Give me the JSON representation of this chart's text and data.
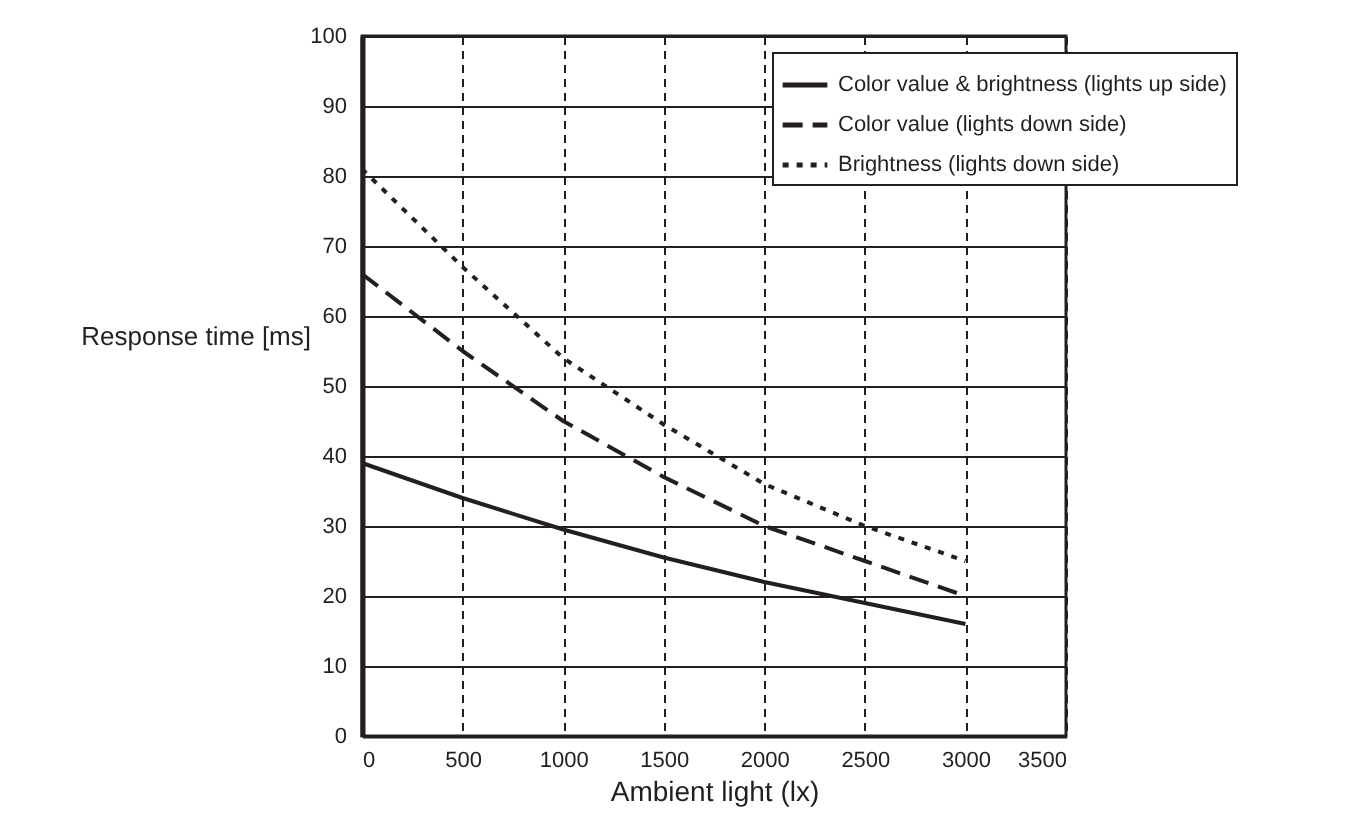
{
  "chart_data": {
    "type": "line",
    "xlabel": "Ambient light (lx)",
    "ylabel": "Response time [ms]",
    "x": [
      0,
      500,
      1000,
      1500,
      2000,
      2500,
      3000
    ],
    "series": [
      {
        "name": "Color value & brightness (lights up side)",
        "color": "#231f20",
        "line_style": "solid",
        "values": [
          39,
          34,
          29.5,
          25.5,
          22,
          19,
          16
        ]
      },
      {
        "name": "Color value (lights down side)",
        "color": "#231f20",
        "line_style": "dashed",
        "values": [
          66,
          55,
          45,
          37,
          30,
          25,
          20
        ]
      },
      {
        "name": "Brightness (lights down side)",
        "color": "#231f20",
        "line_style": "dotted",
        "values": [
          81,
          67,
          54,
          44.5,
          36,
          30,
          25
        ]
      }
    ],
    "xlim": [
      0,
      3500
    ],
    "xticks": [
      0,
      500,
      1000,
      1500,
      2000,
      2500,
      3000,
      3500
    ],
    "ylim": [
      0,
      100
    ],
    "yticks": [
      0,
      10,
      20,
      30,
      40,
      50,
      60,
      70,
      80,
      90,
      100
    ],
    "grid": true,
    "legend": "top right",
    "marker": "none"
  }
}
